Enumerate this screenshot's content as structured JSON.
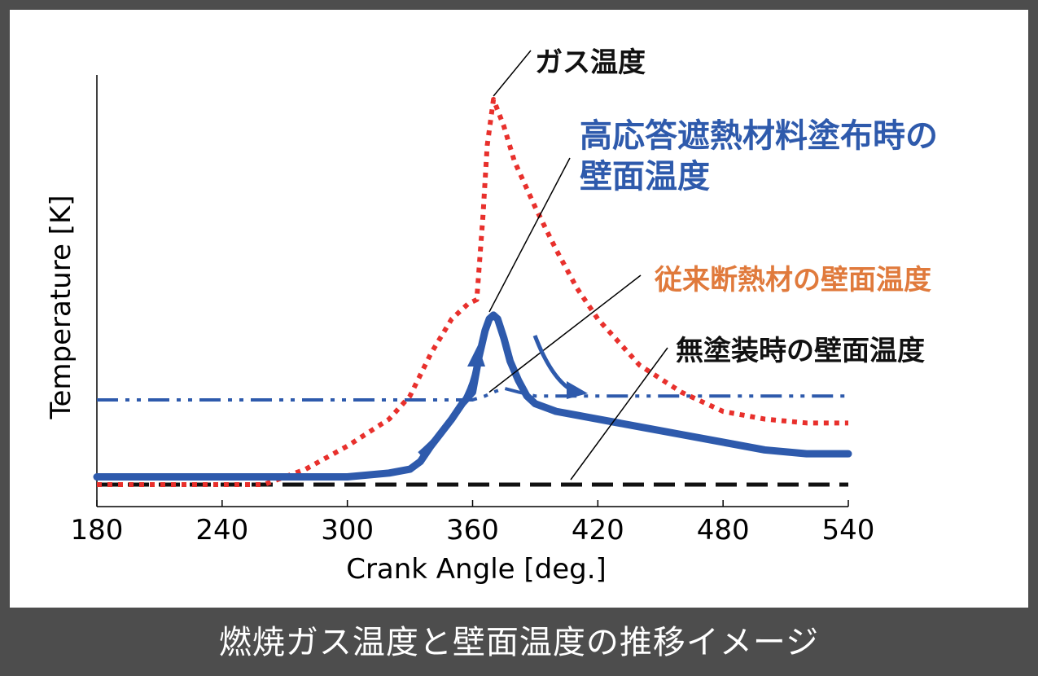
{
  "caption": "燃焼ガス温度と壁面温度の推移イメージ",
  "chart_data": {
    "type": "line",
    "xlabel": "Crank Angle [deg.]",
    "ylabel": "Temperature [K]",
    "xlim": [
      180,
      540
    ],
    "ylim": [
      0,
      100
    ],
    "x_ticks": [
      "180",
      "240",
      "300",
      "360",
      "420",
      "480",
      "540"
    ],
    "grid": false,
    "series": [
      {
        "name": "ガス温度",
        "color": "#e8302c",
        "style": "dotted",
        "x": [
          180,
          200,
          260,
          280,
          300,
          320,
          330,
          340,
          350,
          358,
          362,
          365,
          367,
          370,
          375,
          380,
          390,
          400,
          410,
          420,
          440,
          460,
          480,
          500,
          520,
          540
        ],
        "y": [
          0,
          0,
          0,
          4,
          10,
          17,
          23,
          34,
          43,
          47,
          48,
          70,
          88,
          100,
          93,
          84,
          72,
          61,
          51,
          43,
          31,
          24,
          19,
          17,
          16,
          16
        ]
      },
      {
        "name": "高応答遮熱材料塗布時の壁面温度",
        "color": "#2e5aac",
        "style": "solid-thick",
        "x": [
          180,
          300,
          320,
          330,
          335,
          340,
          350,
          355,
          360,
          363,
          366,
          368,
          370,
          372,
          375,
          378,
          382,
          386,
          390,
          400,
          410,
          420,
          440,
          460,
          480,
          500,
          520,
          540
        ],
        "y": [
          2,
          2,
          3,
          4,
          6,
          10,
          17,
          21,
          24,
          33,
          40,
          43,
          44,
          43,
          38,
          32,
          27,
          23,
          21,
          19,
          18,
          17,
          15,
          13,
          11,
          9,
          8,
          8
        ]
      },
      {
        "name": "従来断熱材の壁面温度",
        "color": "#2e5aac",
        "style": "dash-dot-dot",
        "x": [
          180,
          300,
          340,
          360,
          366,
          370,
          375,
          382,
          390,
          400,
          420,
          480,
          540
        ],
        "y": [
          22,
          22,
          22,
          22,
          23,
          24,
          25,
          24,
          23,
          23,
          23,
          23,
          23
        ]
      },
      {
        "name": "無塗装時の壁面温度",
        "color": "#111111",
        "style": "dashed",
        "x": [
          180,
          540
        ],
        "y": [
          0,
          0
        ]
      }
    ],
    "annotations": [
      {
        "text": "ガス温度",
        "color": "#111111"
      },
      {
        "text": "高応答遮熱材料塗布時の",
        "color": "#2e5aac"
      },
      {
        "text": "壁面温度",
        "color": "#2e5aac"
      },
      {
        "text": "従来断熱材の壁面温度",
        "color": "#e07a3c"
      },
      {
        "text": "無塗装時の壁面温度",
        "color": "#111111"
      }
    ]
  }
}
